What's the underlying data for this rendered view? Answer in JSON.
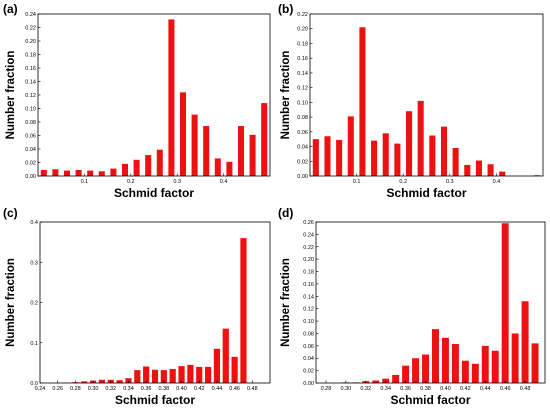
{
  "colors": {
    "bar": "#ee1111",
    "axis": "#000000"
  },
  "chart_data": [
    {
      "type": "bar",
      "panel_label": "(a)",
      "xlabel": "Schmid factor",
      "ylabel": "Number fraction",
      "xlim": [
        0.0,
        0.5
      ],
      "ylim": [
        0.0,
        0.24
      ],
      "xticks": [
        0.1,
        0.2,
        0.3,
        0.4
      ],
      "xtick_labels": [
        "0.1",
        "0.2",
        "0.3",
        "0.4"
      ],
      "yticks": [
        0,
        0.02,
        0.04,
        0.06,
        0.08,
        0.1,
        0.12,
        0.14,
        0.16,
        0.18,
        0.2,
        0.22,
        0.24
      ],
      "ytick_labels": [
        "0.00",
        "0.02",
        "0.04",
        "0.06",
        "0.08",
        "0.10",
        "0.12",
        "0.14",
        "0.16",
        "0.18",
        "0.20",
        "0.22",
        "0.24"
      ],
      "bar_width": 0.013,
      "x": [
        0.0125,
        0.0375,
        0.0625,
        0.0875,
        0.1125,
        0.1375,
        0.1625,
        0.1875,
        0.2125,
        0.2375,
        0.2625,
        0.2875,
        0.3125,
        0.3375,
        0.3625,
        0.3875,
        0.4125,
        0.4375,
        0.4625,
        0.4875
      ],
      "values": [
        0.009,
        0.01,
        0.008,
        0.009,
        0.008,
        0.007,
        0.011,
        0.018,
        0.024,
        0.031,
        0.039,
        0.232,
        0.124,
        0.091,
        0.074,
        0.026,
        0.021,
        0.074,
        0.061,
        0.108
      ]
    },
    {
      "type": "bar",
      "panel_label": "(b)",
      "xlabel": "Schmid factor",
      "ylabel": "Number fraction",
      "xlim": [
        0.0,
        0.5
      ],
      "ylim": [
        0.0,
        0.22
      ],
      "xticks": [
        0.1,
        0.2,
        0.3,
        0.4
      ],
      "xtick_labels": [
        "0.1",
        "0.2",
        "0.3",
        "0.4"
      ],
      "yticks": [
        0,
        0.02,
        0.04,
        0.06,
        0.08,
        0.1,
        0.12,
        0.14,
        0.16,
        0.18,
        0.2,
        0.22
      ],
      "ytick_labels": [
        "0.00",
        "0.02",
        "0.04",
        "0.06",
        "0.08",
        "0.10",
        "0.12",
        "0.14",
        "0.16",
        "0.18",
        "0.20",
        "0.22"
      ],
      "bar_width": 0.013,
      "x": [
        0.0125,
        0.0375,
        0.0625,
        0.0875,
        0.1125,
        0.1375,
        0.1625,
        0.1875,
        0.2125,
        0.2375,
        0.2625,
        0.2875,
        0.3125,
        0.3375,
        0.3625,
        0.3875,
        0.4125,
        0.4375,
        0.4625,
        0.4875
      ],
      "values": [
        0.05,
        0.054,
        0.049,
        0.081,
        0.202,
        0.048,
        0.058,
        0.044,
        0.088,
        0.102,
        0.055,
        0.067,
        0.038,
        0.015,
        0.021,
        0.016,
        0.006,
        0.0,
        0.0,
        0.001
      ]
    },
    {
      "type": "bar",
      "panel_label": "(c)",
      "xlabel": "Schmid factor",
      "ylabel": "Number fraction",
      "xlim": [
        0.24,
        0.5
      ],
      "ylim": [
        0.0,
        0.4
      ],
      "xticks": [
        0.24,
        0.26,
        0.28,
        0.3,
        0.32,
        0.34,
        0.36,
        0.38,
        0.4,
        0.42,
        0.44,
        0.46,
        0.48
      ],
      "xtick_labels": [
        "0.24",
        "0.26",
        "0.28",
        "0.30",
        "0.32",
        "0.34",
        "0.36",
        "0.38",
        "0.40",
        "0.42",
        "0.44",
        "0.46",
        "0.48"
      ],
      "yticks": [
        0,
        0.1,
        0.2,
        0.3,
        0.4
      ],
      "ytick_labels": [
        "0.0",
        "0.1",
        "0.2",
        "0.3",
        "0.4"
      ],
      "bar_width": 0.007,
      "x": [
        0.27,
        0.28,
        0.29,
        0.3,
        0.31,
        0.32,
        0.33,
        0.34,
        0.35,
        0.36,
        0.37,
        0.38,
        0.39,
        0.4,
        0.41,
        0.42,
        0.43,
        0.44,
        0.45,
        0.46,
        0.47,
        0.48,
        0.49
      ],
      "values": [
        0.001,
        0.002,
        0.004,
        0.006,
        0.008,
        0.008,
        0.007,
        0.012,
        0.032,
        0.041,
        0.033,
        0.032,
        0.035,
        0.042,
        0.045,
        0.04,
        0.04,
        0.085,
        0.135,
        0.065,
        0.36,
        0.0,
        0.0
      ]
    },
    {
      "type": "bar",
      "panel_label": "(d)",
      "xlabel": "Schmid factor",
      "ylabel": "Number fraction",
      "xlim": [
        0.27,
        0.5
      ],
      "ylim": [
        0.0,
        0.26
      ],
      "xticks": [
        0.28,
        0.3,
        0.32,
        0.34,
        0.36,
        0.38,
        0.4,
        0.42,
        0.44,
        0.46,
        0.48
      ],
      "xtick_labels": [
        "0.28",
        "0.30",
        "0.32",
        "0.34",
        "0.36",
        "0.38",
        "0.40",
        "0.42",
        "0.44",
        "0.46",
        "0.48"
      ],
      "yticks": [
        0,
        0.02,
        0.04,
        0.06,
        0.08,
        0.1,
        0.12,
        0.14,
        0.16,
        0.18,
        0.2,
        0.22,
        0.24,
        0.26
      ],
      "ytick_labels": [
        "0.00",
        "0.02",
        "0.04",
        "0.06",
        "0.08",
        "0.10",
        "0.12",
        "0.14",
        "0.16",
        "0.18",
        "0.20",
        "0.22",
        "0.24",
        "0.26"
      ],
      "bar_width": 0.007,
      "x": [
        0.28,
        0.29,
        0.3,
        0.31,
        0.32,
        0.33,
        0.34,
        0.35,
        0.36,
        0.37,
        0.38,
        0.39,
        0.4,
        0.41,
        0.42,
        0.43,
        0.44,
        0.45,
        0.46,
        0.47,
        0.48,
        0.49
      ],
      "values": [
        0.0,
        0.0,
        0.001,
        0.001,
        0.003,
        0.004,
        0.007,
        0.013,
        0.028,
        0.04,
        0.046,
        0.087,
        0.073,
        0.063,
        0.036,
        0.031,
        0.06,
        0.052,
        0.258,
        0.08,
        0.132,
        0.064
      ]
    }
  ]
}
